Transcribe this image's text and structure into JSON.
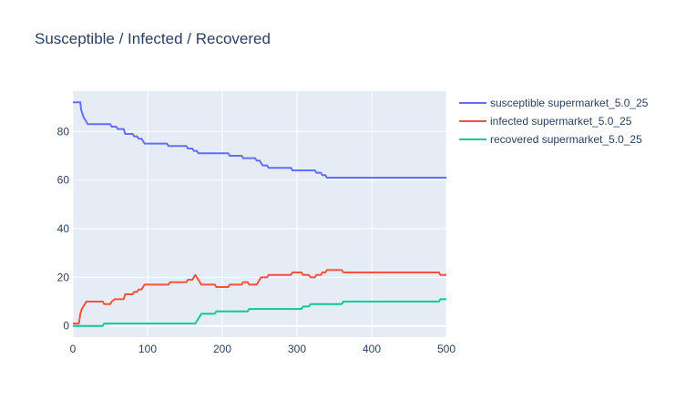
{
  "chart_data": {
    "type": "line",
    "title": "Susceptible / Infected / Recovered",
    "xlabel": "",
    "ylabel": "",
    "xlim": [
      0,
      500
    ],
    "ylim": [
      -4.6,
      96.6
    ],
    "x_ticks": [
      0,
      100,
      200,
      300,
      400,
      500
    ],
    "y_ticks": [
      0,
      20,
      40,
      60,
      80
    ],
    "grid": true,
    "legend_placement": "right",
    "plot_background": "#e5ecf6",
    "series": [
      {
        "name": "susceptible supermarket_5.0_25",
        "color": "#636efa",
        "points": [
          [
            0,
            92
          ],
          [
            10,
            92
          ],
          [
            11,
            89
          ],
          [
            13,
            87
          ],
          [
            14,
            86
          ],
          [
            16,
            85
          ],
          [
            18,
            84
          ],
          [
            20,
            83
          ],
          [
            50,
            83
          ],
          [
            52,
            82
          ],
          [
            58,
            82
          ],
          [
            60,
            81
          ],
          [
            68,
            81
          ],
          [
            70,
            79
          ],
          [
            80,
            79
          ],
          [
            82,
            78
          ],
          [
            86,
            78
          ],
          [
            88,
            77
          ],
          [
            92,
            77
          ],
          [
            94,
            76
          ],
          [
            96,
            75
          ],
          [
            126,
            75
          ],
          [
            128,
            74
          ],
          [
            152,
            74
          ],
          [
            154,
            73
          ],
          [
            160,
            73
          ],
          [
            162,
            72
          ],
          [
            166,
            72
          ],
          [
            168,
            71
          ],
          [
            208,
            71
          ],
          [
            210,
            70
          ],
          [
            226,
            70
          ],
          [
            228,
            69
          ],
          [
            244,
            69
          ],
          [
            246,
            68
          ],
          [
            250,
            68
          ],
          [
            252,
            67
          ],
          [
            254,
            66
          ],
          [
            260,
            66
          ],
          [
            262,
            65
          ],
          [
            292,
            65
          ],
          [
            294,
            64
          ],
          [
            324,
            64
          ],
          [
            326,
            63
          ],
          [
            332,
            63
          ],
          [
            334,
            62
          ],
          [
            338,
            62
          ],
          [
            340,
            61
          ],
          [
            500,
            61
          ]
        ]
      },
      {
        "name": "infected supermarket_5.0_25",
        "color": "#ef553b",
        "points": [
          [
            0,
            1
          ],
          [
            8,
            1
          ],
          [
            9,
            3
          ],
          [
            10,
            5
          ],
          [
            11,
            6
          ],
          [
            12,
            7
          ],
          [
            14,
            8
          ],
          [
            16,
            9
          ],
          [
            18,
            10
          ],
          [
            40,
            10
          ],
          [
            42,
            9
          ],
          [
            50,
            9
          ],
          [
            52,
            10
          ],
          [
            56,
            11
          ],
          [
            68,
            11
          ],
          [
            70,
            13
          ],
          [
            80,
            13
          ],
          [
            82,
            14
          ],
          [
            86,
            14
          ],
          [
            88,
            15
          ],
          [
            92,
            15
          ],
          [
            94,
            16
          ],
          [
            96,
            17
          ],
          [
            128,
            17
          ],
          [
            130,
            18
          ],
          [
            152,
            18
          ],
          [
            154,
            19
          ],
          [
            160,
            19
          ],
          [
            162,
            20
          ],
          [
            164,
            21
          ],
          [
            166,
            20
          ],
          [
            168,
            19
          ],
          [
            170,
            18
          ],
          [
            172,
            17
          ],
          [
            190,
            17
          ],
          [
            192,
            16
          ],
          [
            208,
            16
          ],
          [
            210,
            17
          ],
          [
            226,
            17
          ],
          [
            228,
            18
          ],
          [
            234,
            18
          ],
          [
            236,
            17
          ],
          [
            246,
            17
          ],
          [
            248,
            18
          ],
          [
            250,
            19
          ],
          [
            252,
            20
          ],
          [
            260,
            20
          ],
          [
            262,
            21
          ],
          [
            292,
            21
          ],
          [
            294,
            22
          ],
          [
            306,
            22
          ],
          [
            308,
            21
          ],
          [
            316,
            21
          ],
          [
            318,
            20
          ],
          [
            324,
            20
          ],
          [
            326,
            21
          ],
          [
            332,
            21
          ],
          [
            334,
            22
          ],
          [
            338,
            22
          ],
          [
            340,
            23
          ],
          [
            360,
            23
          ],
          [
            362,
            22
          ],
          [
            490,
            22
          ],
          [
            492,
            21
          ],
          [
            500,
            21
          ]
        ]
      },
      {
        "name": "recovered supermarket_5.0_25",
        "color": "#00cc96",
        "points": [
          [
            0,
            0
          ],
          [
            40,
            0
          ],
          [
            42,
            1
          ],
          [
            164,
            1
          ],
          [
            166,
            2
          ],
          [
            168,
            3
          ],
          [
            170,
            4
          ],
          [
            172,
            5
          ],
          [
            190,
            5
          ],
          [
            192,
            6
          ],
          [
            234,
            6
          ],
          [
            236,
            7
          ],
          [
            306,
            7
          ],
          [
            308,
            8
          ],
          [
            316,
            8
          ],
          [
            318,
            9
          ],
          [
            360,
            9
          ],
          [
            362,
            10
          ],
          [
            490,
            10
          ],
          [
            492,
            11
          ],
          [
            500,
            11
          ]
        ]
      }
    ]
  }
}
